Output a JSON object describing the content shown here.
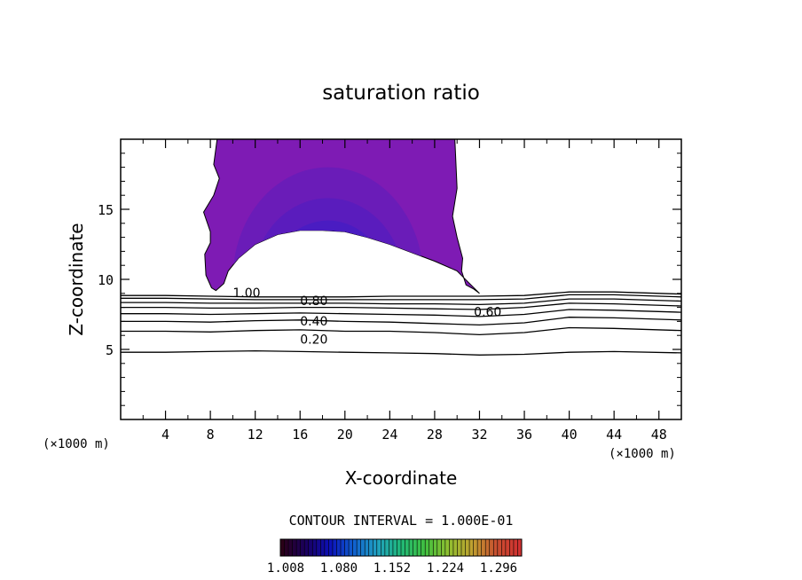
{
  "chart_data": {
    "type": "contour",
    "title": "saturation ratio",
    "xlabel": "X-coordinate",
    "ylabel": "Z-coordinate",
    "x_unit_label": "(×1000 m)",
    "xlim": [
      0,
      50
    ],
    "ylim": [
      0,
      20
    ],
    "xticks": [
      4,
      8,
      12,
      16,
      20,
      24,
      28,
      32,
      36,
      40,
      44,
      48
    ],
    "yticks": [
      5,
      10,
      15
    ],
    "contour_interval_text": "CONTOUR INTERVAL = 1.000E-01",
    "contour_lines": [
      {
        "label": "0.20",
        "z": [
          4.8,
          4.8,
          4.85,
          4.9,
          4.85,
          4.8,
          4.75,
          4.7,
          4.6,
          4.65,
          4.8,
          4.85,
          4.75
        ]
      },
      {
        "label": "",
        "z": [
          6.3,
          6.3,
          6.25,
          6.35,
          6.4,
          6.3,
          6.3,
          6.2,
          6.05,
          6.2,
          6.55,
          6.5,
          6.35
        ]
      },
      {
        "label": "0.40",
        "z": [
          7.0,
          7.0,
          6.95,
          7.05,
          7.1,
          7.0,
          6.95,
          6.85,
          6.75,
          6.9,
          7.3,
          7.25,
          7.1
        ]
      },
      {
        "label": "",
        "z": [
          7.55,
          7.55,
          7.5,
          7.55,
          7.6,
          7.55,
          7.5,
          7.45,
          7.35,
          7.5,
          7.85,
          7.8,
          7.65
        ]
      },
      {
        "label": "0.60",
        "z": [
          8.0,
          8.0,
          7.95,
          7.95,
          8.0,
          8.0,
          7.95,
          7.9,
          7.85,
          8.0,
          8.3,
          8.25,
          8.1
        ]
      },
      {
        "label": "",
        "z": [
          8.35,
          8.35,
          8.3,
          8.3,
          8.3,
          8.3,
          8.25,
          8.25,
          8.2,
          8.3,
          8.6,
          8.6,
          8.45
        ]
      },
      {
        "label": "0.80",
        "z": [
          8.65,
          8.65,
          8.6,
          8.55,
          8.55,
          8.55,
          8.55,
          8.55,
          8.55,
          8.6,
          8.9,
          8.9,
          8.75
        ]
      },
      {
        "label": "",
        "z": [
          8.85,
          8.85,
          8.8,
          8.75,
          8.75,
          8.75,
          8.8,
          8.8,
          8.8,
          8.85,
          9.1,
          9.1,
          8.95
        ]
      }
    ],
    "contour_x": [
      0,
      4,
      8,
      12,
      16,
      20,
      24,
      28,
      32,
      36,
      40,
      44,
      50
    ],
    "visible_labels": [
      "1.00",
      "0.80",
      "0.60",
      "0.40",
      "0.20"
    ],
    "supersaturated_region": {
      "fill_color": "#7e1bb4",
      "outline_x": [
        8.5,
        9.2,
        9.6,
        10.5,
        12,
        14,
        16,
        18,
        20,
        22,
        24,
        26,
        28,
        30,
        31,
        32,
        31.5,
        30.8,
        30.4,
        30.5,
        30.0,
        29.6,
        30.0,
        29.8,
        8.6,
        8.3,
        8.8,
        8.3,
        7.4,
        8.0,
        8.0,
        7.5,
        7.6,
        8.1,
        8.5
      ],
      "outline_z": [
        9.2,
        9.7,
        10.6,
        11.5,
        12.5,
        13.2,
        13.5,
        13.5,
        13.4,
        13.0,
        12.5,
        11.9,
        11.3,
        10.6,
        9.8,
        9.0,
        9.3,
        9.6,
        10.6,
        11.5,
        13.0,
        14.5,
        16.5,
        20,
        20,
        18.2,
        17.2,
        16.0,
        14.8,
        13.4,
        12.6,
        11.8,
        10.3,
        9.4,
        9.2
      ],
      "core_levels": [
        {
          "value": 1.02,
          "color": "#6a1cb8",
          "center": [
            18.5,
            10
          ],
          "radius": [
            8.5,
            8.0
          ]
        },
        {
          "value": 1.04,
          "color": "#5a1cbd",
          "center": [
            18.5,
            9.6
          ],
          "radius": [
            6.8,
            6.2
          ]
        },
        {
          "value": 1.06,
          "color": "#4a1cc2",
          "center": [
            18.5,
            9.4
          ],
          "radius": [
            5.4,
            4.8
          ]
        },
        {
          "value": 1.08,
          "color": "#3a1ec6",
          "center": [
            18.5,
            9.3
          ],
          "radius": [
            4.0,
            3.4
          ]
        },
        {
          "value": 1.1,
          "color": "#2a20cc",
          "center": [
            18.8,
            9.2
          ],
          "radius": [
            2.8,
            2.2
          ]
        },
        {
          "value": 1.12,
          "color": "#1a28d4",
          "center": [
            19.0,
            9.2
          ],
          "radius": [
            1.8,
            1.3
          ]
        },
        {
          "value": 1.14,
          "color": "#1245e0",
          "center": [
            19.0,
            9.15
          ],
          "radius": [
            1.0,
            0.7
          ]
        }
      ],
      "bright_strip": {
        "x": [
          11.5,
          16.5
        ],
        "z": 9.0,
        "color": "#30d8f0"
      }
    },
    "colorbar": {
      "ticks": [
        "1.008",
        "1.080",
        "1.152",
        "1.224",
        "1.296"
      ],
      "colors": [
        "#2a0018",
        "#1a0060",
        "#0c10b8",
        "#1060d0",
        "#20a0c0",
        "#20b878",
        "#40c040",
        "#90c030",
        "#c0a030",
        "#c85030",
        "#d03030"
      ]
    }
  }
}
